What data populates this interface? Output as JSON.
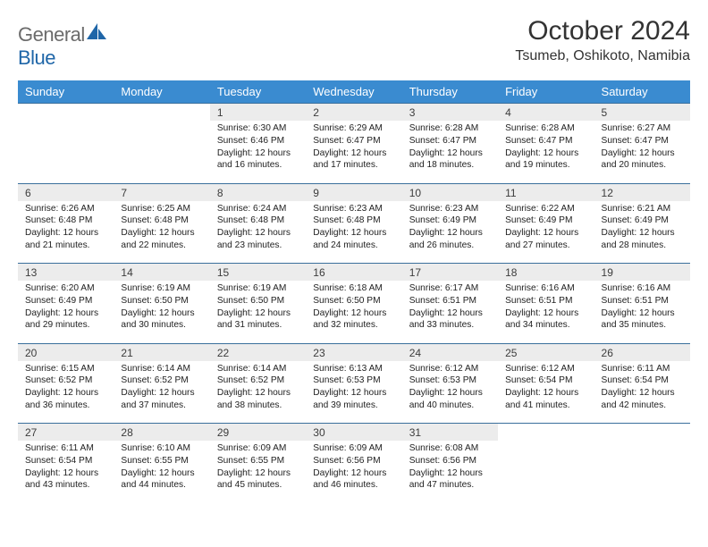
{
  "logo": {
    "text1": "General",
    "text2": "Blue"
  },
  "colors": {
    "header_bg": "#3a8bd0",
    "daynum_bg": "#ececec",
    "rule": "#3a6f9c",
    "logo_gray": "#6b6b6b",
    "logo_blue": "#1f66a8"
  },
  "title": "October 2024",
  "location": "Tsumeb, Oshikoto, Namibia",
  "weekdays": [
    "Sunday",
    "Monday",
    "Tuesday",
    "Wednesday",
    "Thursday",
    "Friday",
    "Saturday"
  ],
  "weeks": [
    [
      null,
      null,
      {
        "n": "1",
        "sr": "6:30 AM",
        "ss": "6:46 PM",
        "dl": "12 hours and 16 minutes."
      },
      {
        "n": "2",
        "sr": "6:29 AM",
        "ss": "6:47 PM",
        "dl": "12 hours and 17 minutes."
      },
      {
        "n": "3",
        "sr": "6:28 AM",
        "ss": "6:47 PM",
        "dl": "12 hours and 18 minutes."
      },
      {
        "n": "4",
        "sr": "6:28 AM",
        "ss": "6:47 PM",
        "dl": "12 hours and 19 minutes."
      },
      {
        "n": "5",
        "sr": "6:27 AM",
        "ss": "6:47 PM",
        "dl": "12 hours and 20 minutes."
      }
    ],
    [
      {
        "n": "6",
        "sr": "6:26 AM",
        "ss": "6:48 PM",
        "dl": "12 hours and 21 minutes."
      },
      {
        "n": "7",
        "sr": "6:25 AM",
        "ss": "6:48 PM",
        "dl": "12 hours and 22 minutes."
      },
      {
        "n": "8",
        "sr": "6:24 AM",
        "ss": "6:48 PM",
        "dl": "12 hours and 23 minutes."
      },
      {
        "n": "9",
        "sr": "6:23 AM",
        "ss": "6:48 PM",
        "dl": "12 hours and 24 minutes."
      },
      {
        "n": "10",
        "sr": "6:23 AM",
        "ss": "6:49 PM",
        "dl": "12 hours and 26 minutes."
      },
      {
        "n": "11",
        "sr": "6:22 AM",
        "ss": "6:49 PM",
        "dl": "12 hours and 27 minutes."
      },
      {
        "n": "12",
        "sr": "6:21 AM",
        "ss": "6:49 PM",
        "dl": "12 hours and 28 minutes."
      }
    ],
    [
      {
        "n": "13",
        "sr": "6:20 AM",
        "ss": "6:49 PM",
        "dl": "12 hours and 29 minutes."
      },
      {
        "n": "14",
        "sr": "6:19 AM",
        "ss": "6:50 PM",
        "dl": "12 hours and 30 minutes."
      },
      {
        "n": "15",
        "sr": "6:19 AM",
        "ss": "6:50 PM",
        "dl": "12 hours and 31 minutes."
      },
      {
        "n": "16",
        "sr": "6:18 AM",
        "ss": "6:50 PM",
        "dl": "12 hours and 32 minutes."
      },
      {
        "n": "17",
        "sr": "6:17 AM",
        "ss": "6:51 PM",
        "dl": "12 hours and 33 minutes."
      },
      {
        "n": "18",
        "sr": "6:16 AM",
        "ss": "6:51 PM",
        "dl": "12 hours and 34 minutes."
      },
      {
        "n": "19",
        "sr": "6:16 AM",
        "ss": "6:51 PM",
        "dl": "12 hours and 35 minutes."
      }
    ],
    [
      {
        "n": "20",
        "sr": "6:15 AM",
        "ss": "6:52 PM",
        "dl": "12 hours and 36 minutes."
      },
      {
        "n": "21",
        "sr": "6:14 AM",
        "ss": "6:52 PM",
        "dl": "12 hours and 37 minutes."
      },
      {
        "n": "22",
        "sr": "6:14 AM",
        "ss": "6:52 PM",
        "dl": "12 hours and 38 minutes."
      },
      {
        "n": "23",
        "sr": "6:13 AM",
        "ss": "6:53 PM",
        "dl": "12 hours and 39 minutes."
      },
      {
        "n": "24",
        "sr": "6:12 AM",
        "ss": "6:53 PM",
        "dl": "12 hours and 40 minutes."
      },
      {
        "n": "25",
        "sr": "6:12 AM",
        "ss": "6:54 PM",
        "dl": "12 hours and 41 minutes."
      },
      {
        "n": "26",
        "sr": "6:11 AM",
        "ss": "6:54 PM",
        "dl": "12 hours and 42 minutes."
      }
    ],
    [
      {
        "n": "27",
        "sr": "6:11 AM",
        "ss": "6:54 PM",
        "dl": "12 hours and 43 minutes."
      },
      {
        "n": "28",
        "sr": "6:10 AM",
        "ss": "6:55 PM",
        "dl": "12 hours and 44 minutes."
      },
      {
        "n": "29",
        "sr": "6:09 AM",
        "ss": "6:55 PM",
        "dl": "12 hours and 45 minutes."
      },
      {
        "n": "30",
        "sr": "6:09 AM",
        "ss": "6:56 PM",
        "dl": "12 hours and 46 minutes."
      },
      {
        "n": "31",
        "sr": "6:08 AM",
        "ss": "6:56 PM",
        "dl": "12 hours and 47 minutes."
      },
      null,
      null
    ]
  ],
  "labels": {
    "sunrise": "Sunrise:",
    "sunset": "Sunset:",
    "daylight": "Daylight:"
  }
}
